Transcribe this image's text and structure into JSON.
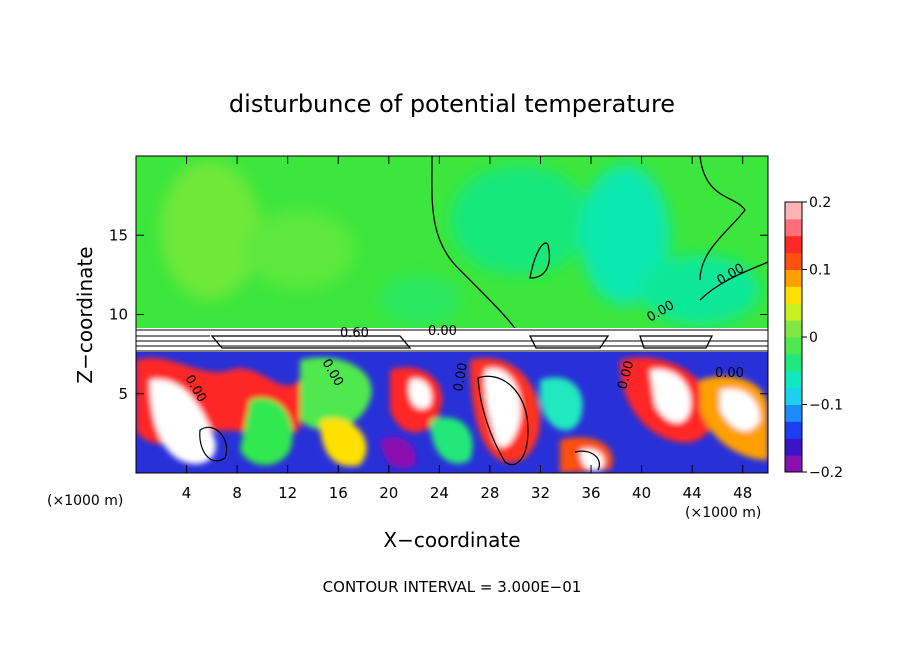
{
  "chart_data": {
    "type": "heatmap",
    "title": "disturbunce of potential temperature",
    "xlabel": "X−coordinate",
    "ylabel": "Z−coordinate",
    "x_unit": "(×1000 m)",
    "y_unit": "(×1000 m)",
    "xlim": [
      0,
      50
    ],
    "ylim": [
      0,
      20
    ],
    "x_ticks": [
      "4",
      "8",
      "12",
      "16",
      "20",
      "24",
      "28",
      "32",
      "36",
      "40",
      "44",
      "48"
    ],
    "y_ticks": [
      "5",
      "10",
      "15"
    ],
    "colorbar": {
      "min": -0.2,
      "max": 0.2,
      "tick_labels": [
        "0.2",
        "0.1",
        "0",
        "−0.1",
        "−0.2"
      ],
      "colors": [
        "#8b10b0",
        "#3a14c8",
        "#1e3cf0",
        "#1a8cff",
        "#1ad2f0",
        "#10e8c0",
        "#20e87a",
        "#50e850",
        "#80e840",
        "#c8f020",
        "#ffe000",
        "#ffa000",
        "#ff5010",
        "#ff2828",
        "#ff6e78",
        "#ffb4b4"
      ]
    },
    "contour_labels": [
      "0.60",
      "0.00",
      "0.00",
      "0.00",
      "0.00",
      "0.00",
      "0.00",
      "0.00",
      "0.00"
    ],
    "footer": "CONTOUR INTERVAL = 3.000E−01"
  }
}
